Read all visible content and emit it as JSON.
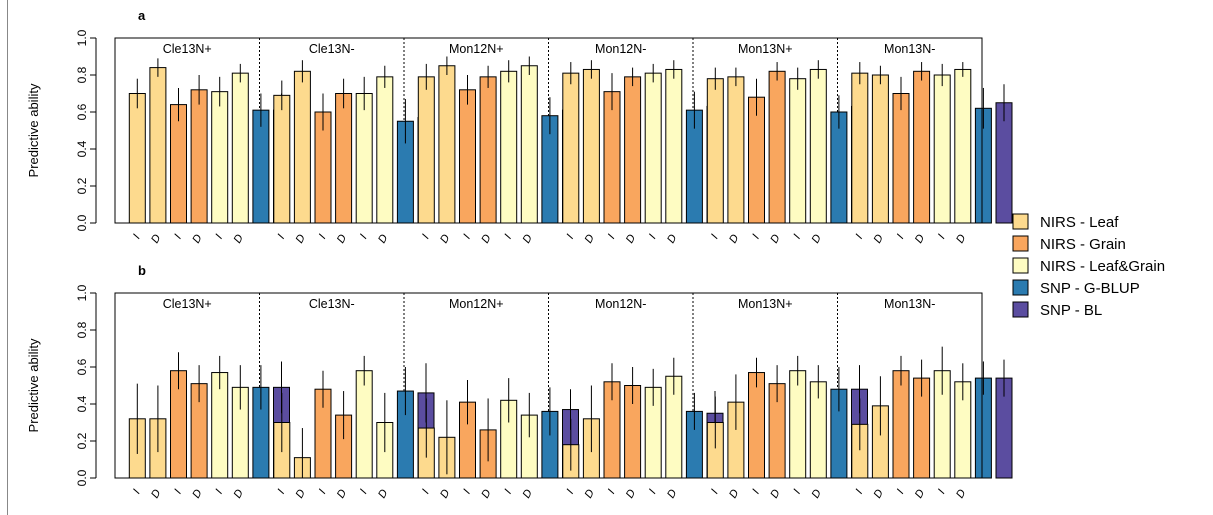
{
  "legend": {
    "placement": "right",
    "items": [
      {
        "label": "NIRS - Leaf",
        "color": "#FDDA8E"
      },
      {
        "label": "NIRS - Grain",
        "color": "#F9A65E"
      },
      {
        "label": "NIRS - Leaf&Grain",
        "color": "#FEFCC2"
      },
      {
        "label": "SNP - G-BLUP",
        "color": "#2B7BB0"
      },
      {
        "label": "SNP - BL",
        "color": "#5B4DA0"
      }
    ]
  },
  "chart_data": [
    {
      "panel": "a",
      "type": "bar",
      "ylabel": "Predictive ability",
      "ylim": [
        0,
        1
      ],
      "yticks": [
        "0.0",
        "0.2",
        "0.4",
        "0.6",
        "0.8",
        "1.0"
      ],
      "bar_labels": [
        "I",
        "D",
        "I",
        "D",
        "I",
        "D",
        "",
        ""
      ],
      "groups": [
        "Cle13N+",
        "Cle13N-",
        "Mon12N+",
        "Mon12N-",
        "Mon13N+",
        "Mon13N-"
      ],
      "series": [
        {
          "name": "NIRS - Leaf",
          "method": "I",
          "values": [
            0.7,
            0.69,
            0.79,
            0.81,
            0.78,
            0.81
          ],
          "err": [
            0.08,
            0.08,
            0.07,
            0.06,
            0.06,
            0.06
          ]
        },
        {
          "name": "NIRS - Leaf",
          "method": "D",
          "values": [
            0.84,
            0.82,
            0.85,
            0.83,
            0.79,
            0.8
          ],
          "err": [
            0.05,
            0.06,
            0.05,
            0.05,
            0.05,
            0.05
          ]
        },
        {
          "name": "NIRS - Grain",
          "method": "I",
          "values": [
            0.64,
            0.6,
            0.72,
            0.71,
            0.68,
            0.7
          ],
          "err": [
            0.09,
            0.1,
            0.08,
            0.1,
            0.1,
            0.09
          ]
        },
        {
          "name": "NIRS - Grain",
          "method": "D",
          "values": [
            0.72,
            0.7,
            0.79,
            0.79,
            0.82,
            0.82
          ],
          "err": [
            0.08,
            0.08,
            0.06,
            0.05,
            0.05,
            0.05
          ]
        },
        {
          "name": "NIRS - Leaf&Grain",
          "method": "I",
          "values": [
            0.71,
            0.7,
            0.82,
            0.81,
            0.78,
            0.8
          ],
          "err": [
            0.08,
            0.09,
            0.06,
            0.05,
            0.06,
            0.06
          ]
        },
        {
          "name": "NIRS - Leaf&Grain",
          "method": "D",
          "values": [
            0.81,
            0.79,
            0.85,
            0.83,
            0.83,
            0.83
          ],
          "err": [
            0.05,
            0.06,
            0.05,
            0.05,
            0.05,
            0.04
          ]
        },
        {
          "name": "SNP - G-BLUP",
          "method": "",
          "values": [
            0.61,
            0.55,
            0.58,
            0.61,
            0.6,
            0.62
          ],
          "err": [
            0.09,
            0.12,
            0.1,
            0.1,
            0.09,
            0.11
          ]
        },
        {
          "name": "SNP - BL",
          "method": "",
          "values": [
            0.61,
            0.57,
            0.61,
            0.63,
            0.63,
            0.65
          ],
          "err": [
            0.09,
            0.1,
            0.09,
            0.08,
            0.09,
            0.1
          ]
        }
      ]
    },
    {
      "panel": "b",
      "type": "bar",
      "ylabel": "Predictive ability",
      "ylim": [
        0,
        1
      ],
      "yticks": [
        "0.0",
        "0.2",
        "0.4",
        "0.6",
        "0.8",
        "1.0"
      ],
      "bar_labels": [
        "I",
        "D",
        "I",
        "D",
        "I",
        "D",
        "",
        ""
      ],
      "groups": [
        "Cle13N+",
        "Cle13N-",
        "Mon12N+",
        "Mon12N-",
        "Mon13N+",
        "Mon13N-"
      ],
      "series": [
        {
          "name": "NIRS - Leaf",
          "method": "I",
          "values": [
            0.32,
            0.3,
            0.27,
            0.18,
            0.3,
            0.29
          ],
          "err": [
            0.19,
            0.16,
            0.16,
            0.14,
            0.14,
            0.14
          ]
        },
        {
          "name": "NIRS - Leaf",
          "method": "D",
          "values": [
            0.32,
            0.11,
            0.22,
            0.32,
            0.41,
            0.39
          ],
          "err": [
            0.18,
            0.16,
            0.2,
            0.18,
            0.15,
            0.16
          ]
        },
        {
          "name": "NIRS - Grain",
          "method": "I",
          "values": [
            0.58,
            0.48,
            0.41,
            0.52,
            0.57,
            0.58
          ],
          "err": [
            0.1,
            0.1,
            0.12,
            0.1,
            0.08,
            0.08
          ]
        },
        {
          "name": "NIRS - Grain",
          "method": "D",
          "values": [
            0.51,
            0.34,
            0.26,
            0.5,
            0.51,
            0.54
          ],
          "err": [
            0.1,
            0.13,
            0.17,
            0.1,
            0.1,
            0.1
          ]
        },
        {
          "name": "NIRS - Leaf&Grain",
          "method": "I",
          "values": [
            0.57,
            0.58,
            0.42,
            0.49,
            0.58,
            0.58
          ],
          "err": [
            0.09,
            0.08,
            0.12,
            0.1,
            0.08,
            0.13
          ]
        },
        {
          "name": "NIRS - Leaf&Grain",
          "method": "D",
          "values": [
            0.49,
            0.3,
            0.34,
            0.55,
            0.52,
            0.52
          ],
          "err": [
            0.12,
            0.16,
            0.12,
            0.1,
            0.09,
            0.1
          ]
        },
        {
          "name": "SNP - G-BLUP",
          "method": "",
          "values": [
            0.49,
            0.47,
            0.36,
            0.36,
            0.48,
            0.54
          ],
          "err": [
            0.12,
            0.13,
            0.13,
            0.1,
            0.12,
            0.09
          ]
        },
        {
          "name": "SNP - BL",
          "method": "",
          "values": [
            0.49,
            0.46,
            0.37,
            0.35,
            0.48,
            0.54
          ],
          "err": [
            0.14,
            0.16,
            0.11,
            0.12,
            0.13,
            0.1
          ]
        }
      ]
    }
  ]
}
